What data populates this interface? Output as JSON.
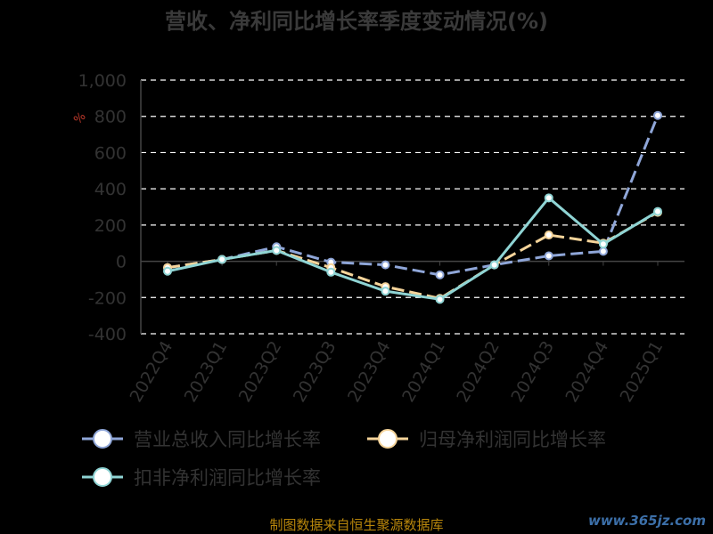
{
  "chart_data": {
    "type": "line",
    "title": "营收、净利同比增长率季度变动情况(%)",
    "unit_label": "%",
    "categories": [
      "2022Q4",
      "2023Q1",
      "2023Q2",
      "2023Q3",
      "2023Q4",
      "2024Q1",
      "2024Q2",
      "2024Q3",
      "2024Q4",
      "2025Q1"
    ],
    "yticks": [
      "1,000",
      "800",
      "600",
      "400",
      "200",
      "0",
      "-200",
      "-400"
    ],
    "ylim": [
      -400,
      1000
    ],
    "grid": true,
    "legend_position": "bottom",
    "series": [
      {
        "name": "营业总收入同比增长率",
        "color": "#8fa6d8",
        "dashed": true,
        "values": [
          -35,
          10,
          80,
          -5,
          -20,
          -75,
          -20,
          30,
          55,
          805
        ]
      },
      {
        "name": "归母净利润同比增长率",
        "color": "#f5d49a",
        "dashed": true,
        "values": [
          -35,
          10,
          60,
          -35,
          -140,
          -205,
          -20,
          145,
          100,
          270
        ]
      },
      {
        "name": "扣非净利润同比增长率",
        "color": "#8fd4d4",
        "dashed": false,
        "values": [
          -55,
          10,
          60,
          -60,
          -165,
          -210,
          -20,
          350,
          95,
          275
        ]
      }
    ]
  },
  "footer": {
    "source": "制图数据来自恒生聚源数据库",
    "watermark": "www.365jz.com"
  }
}
